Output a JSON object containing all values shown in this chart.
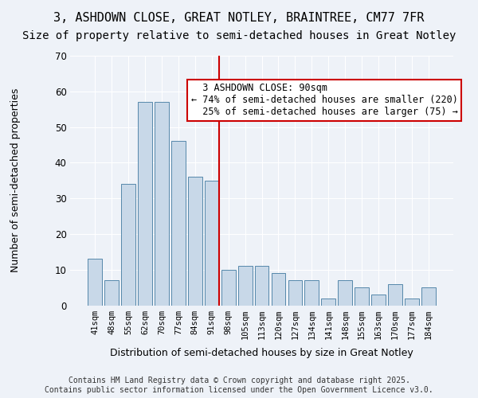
{
  "title_line1": "3, ASHDOWN CLOSE, GREAT NOTLEY, BRAINTREE, CM77 7FR",
  "title_line2": "Size of property relative to semi-detached houses in Great Notley",
  "xlabel": "Distribution of semi-detached houses by size in Great Notley",
  "ylabel": "Number of semi-detached properties",
  "categories": [
    "41sqm",
    "48sqm",
    "55sqm",
    "62sqm",
    "70sqm",
    "77sqm",
    "84sqm",
    "91sqm",
    "98sqm",
    "105sqm",
    "113sqm",
    "120sqm",
    "127sqm",
    "134sqm",
    "141sqm",
    "148sqm",
    "155sqm",
    "163sqm",
    "170sqm",
    "177sqm",
    "184sqm"
  ],
  "bar_values": [
    13,
    7,
    34,
    57,
    57,
    46,
    36,
    35,
    10,
    11,
    11,
    9,
    7,
    7,
    2,
    7,
    5,
    3,
    6,
    2,
    5
  ],
  "property_sqm": 90,
  "property_label": "3 ASHDOWN CLOSE: 90sqm",
  "pct_smaller": 74,
  "num_smaller": 220,
  "pct_larger": 25,
  "num_larger": 75,
  "bar_color": "#c8d8e8",
  "bar_edge_color": "#5588aa",
  "vline_color": "#cc0000",
  "box_edge_color": "#cc0000",
  "background_color": "#eef2f8",
  "ylim": [
    0,
    70
  ],
  "yticks": [
    0,
    10,
    20,
    30,
    40,
    50,
    60,
    70
  ],
  "footer": "Contains HM Land Registry data © Crown copyright and database right 2025.\nContains public sector information licensed under the Open Government Licence v3.0.",
  "title_fontsize": 11,
  "subtitle_fontsize": 10,
  "annotation_fontsize": 8.5,
  "xlabel_fontsize": 9,
  "ylabel_fontsize": 9
}
